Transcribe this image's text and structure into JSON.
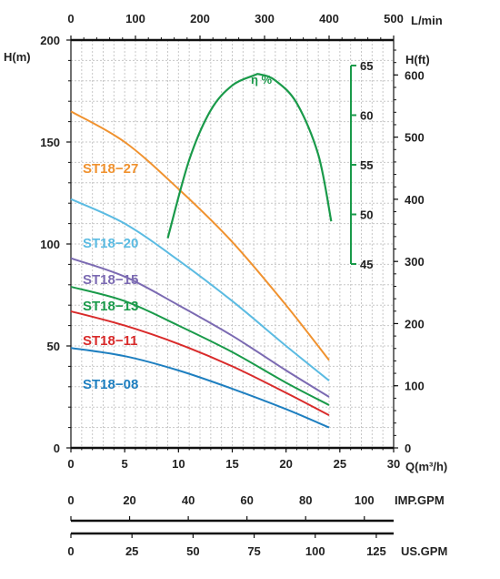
{
  "chart_data": {
    "type": "line",
    "x_axis_bottom": {
      "label": "Q(m³/h)",
      "range": [
        0,
        30
      ],
      "ticks": [
        "0",
        "5",
        "10",
        "15",
        "20",
        "25",
        "30"
      ]
    },
    "x_axis_top": {
      "label": "L/min",
      "range": [
        0,
        500
      ],
      "ticks": [
        "0",
        "100",
        "200",
        "300",
        "400",
        "500"
      ]
    },
    "y_axis_left": {
      "label": "H(m)",
      "range": [
        0,
        200
      ],
      "ticks": [
        "0",
        "50",
        "100",
        "150",
        "200"
      ]
    },
    "y_axis_right": {
      "label": "H(ft)",
      "range": [
        0,
        656
      ],
      "ticks": [
        "0",
        "100",
        "200",
        "300",
        "400",
        "500",
        "600"
      ]
    },
    "efficiency_axis": {
      "label": "η %",
      "range": [
        45,
        65
      ],
      "ticks": [
        "45",
        "50",
        "55",
        "60",
        "65"
      ]
    },
    "imp_gpm_axis": {
      "label": "IMP.GPM",
      "ticks": [
        "0",
        "20",
        "40",
        "60",
        "80",
        "100"
      ]
    },
    "us_gpm_axis": {
      "label": "US.GPM",
      "ticks": [
        "0",
        "25",
        "50",
        "75",
        "100",
        "125"
      ]
    },
    "grid": true,
    "series": [
      {
        "name": "ST18−27",
        "color": "#f0922f",
        "x": [
          0,
          5,
          10,
          15,
          20,
          24
        ],
        "y": [
          165,
          150,
          127,
          101,
          70,
          43
        ]
      },
      {
        "name": "ST18−20",
        "color": "#5bbbe2",
        "x": [
          0,
          5,
          10,
          15,
          20,
          24
        ],
        "y": [
          122,
          110,
          92,
          72,
          50,
          33
        ]
      },
      {
        "name": "ST18−15",
        "color": "#7b6ab2",
        "x": [
          0,
          5,
          10,
          15,
          20,
          24
        ],
        "y": [
          93,
          84,
          70,
          55,
          38,
          25
        ]
      },
      {
        "name": "ST18−13",
        "color": "#1a9a4a",
        "x": [
          0,
          5,
          10,
          15,
          20,
          24
        ],
        "y": [
          79,
          72,
          60,
          47,
          32,
          21
        ]
      },
      {
        "name": "ST18−11",
        "color": "#d92b2b",
        "x": [
          0,
          5,
          10,
          15,
          20,
          24
        ],
        "y": [
          67,
          60,
          51,
          40,
          27,
          16
        ]
      },
      {
        "name": "ST18−08",
        "color": "#1e7fc0",
        "x": [
          0,
          5,
          10,
          15,
          20,
          24
        ],
        "y": [
          49,
          45,
          38,
          29,
          19,
          10
        ]
      }
    ],
    "efficiency_series": {
      "name": "η %",
      "color": "#1a9a4a",
      "x": [
        9,
        11,
        13,
        15,
        17,
        17.6,
        19,
        21,
        23,
        24.2
      ],
      "y": [
        47.6,
        55.5,
        60.5,
        63.0,
        64.0,
        64.1,
        63.5,
        61.2,
        56.0,
        49.3
      ]
    }
  }
}
